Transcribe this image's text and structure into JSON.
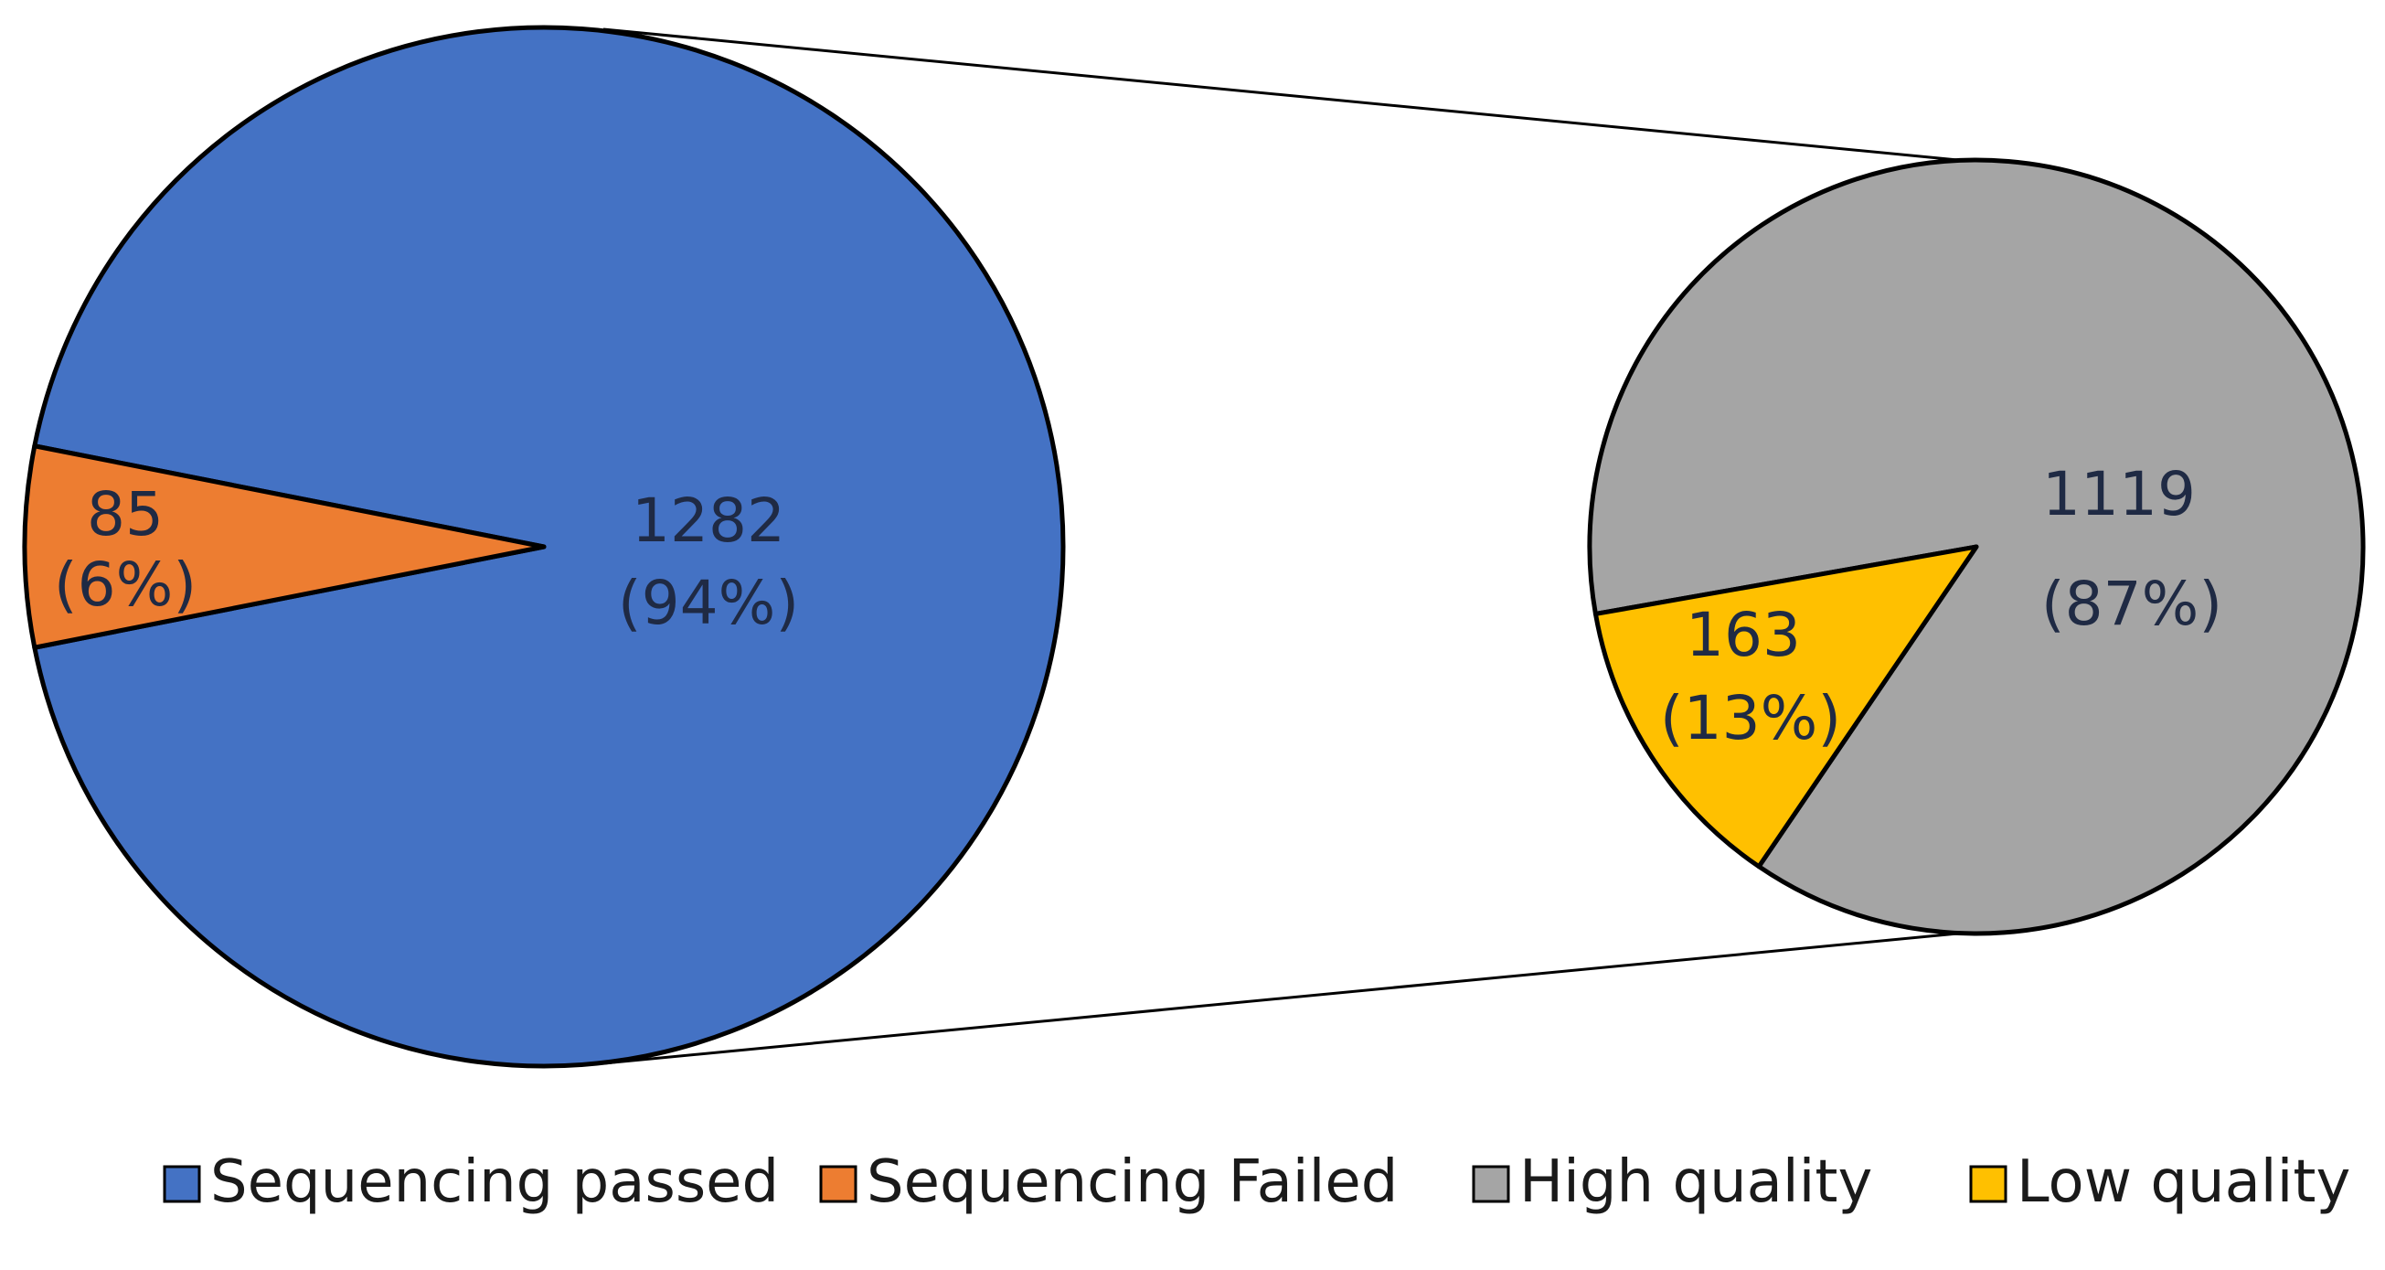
{
  "chart_data": {
    "type": "pie-of-pie",
    "title": "",
    "main_pie": {
      "slices": [
        {
          "key": "passed",
          "name": "Sequencing passed",
          "value": 1282,
          "value_label": "1282",
          "percent_label": "(94%)",
          "color": "#4472C4"
        },
        {
          "key": "failed",
          "name": "Sequencing Failed",
          "value": 85,
          "value_label": "85",
          "percent_label": "(6%)",
          "color": "#ED7D31"
        }
      ]
    },
    "secondary_pie": {
      "breakdown_of": "Sequencing passed",
      "slices": [
        {
          "key": "high",
          "name": "High quality",
          "value": 1119,
          "value_label": "1119",
          "percent_label": "(87%)",
          "color": "#A5A5A5"
        },
        {
          "key": "low",
          "name": "Low quality",
          "value": 163,
          "value_label": "163",
          "percent_label": "(13%)",
          "color": "#FFC000"
        }
      ]
    },
    "legend": {
      "position": "bottom",
      "entries": [
        {
          "name": "Sequencing passed",
          "color": "#4472C4"
        },
        {
          "name": "Sequencing Failed",
          "color": "#ED7D31"
        },
        {
          "name": "High quality",
          "color": "#A5A5A5"
        },
        {
          "name": "Low quality",
          "color": "#FFC000"
        }
      ]
    }
  }
}
